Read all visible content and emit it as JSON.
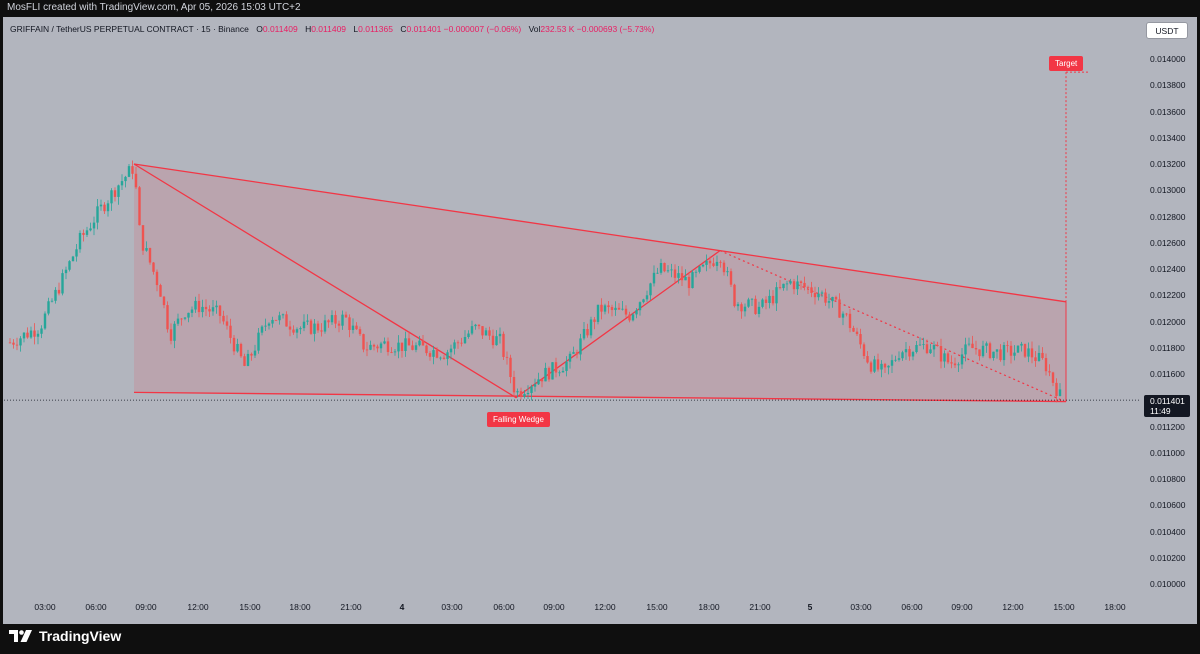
{
  "header": {
    "credit": "MosFLI created with TradingView.com, Apr 05, 2026 15:03 UTC+2"
  },
  "legend": {
    "symbol": "GRIFFAIN / TetherUS PERPETUAL CONTRACT · 15 · Binance",
    "o_key": "O",
    "o_val": "0.011409",
    "h_key": "H",
    "h_val": "0.011409",
    "l_key": "L",
    "l_val": "0.011365",
    "c_key": "C",
    "c_val": "0.011401 −0.000007 (−0.06%)",
    "vol_key": "Vol",
    "vol_val": "232.53 K −0.000693 (−5.73%)"
  },
  "currency_button": "USDT",
  "colors": {
    "up": "#26a69a",
    "down": "#ef5350",
    "pattern_line": "#f23645",
    "pattern_fill": "rgba(242,54,69,0.12)",
    "chart_bg": "#b2b5be"
  },
  "last_price": {
    "value": "0.011401",
    "countdown": "11:49"
  },
  "annotations": {
    "pattern_label": "Falling Wedge",
    "target_label": "Target"
  },
  "footer": {
    "brand": "TradingView",
    "logo_icon": "tradingview-logo-icon"
  },
  "chart_data": {
    "type": "line",
    "title": "GRIFFAIN / TetherUS PERPETUAL CONTRACT · 15 · Binance",
    "series": [
      {
        "name": "GRIFFAIN / TetherUS PERPETUAL CONTRACT",
        "x": [
          "03:00",
          "06:00",
          "08:00",
          "09:00",
          "12:00",
          "15:00",
          "18:00",
          "21:00",
          "4",
          "03:00",
          "06:30",
          "09:00",
          "12:00",
          "15:00",
          "18:00",
          "19:00",
          "21:00",
          "5",
          "03:00",
          "06:00",
          "09:00",
          "12:00",
          "15:00"
        ],
        "values": [
          0.01182,
          0.01196,
          0.01318,
          0.01265,
          0.0121,
          0.01175,
          0.01208,
          0.01187,
          0.0119,
          0.01178,
          0.01142,
          0.01166,
          0.01208,
          0.01232,
          0.0125,
          0.01252,
          0.01205,
          0.01222,
          0.01168,
          0.01182,
          0.01175,
          0.0118,
          0.011401
        ]
      }
    ],
    "y_ticks": [
      "0.014000",
      "0.013800",
      "0.013600",
      "0.013400",
      "0.013200",
      "0.013000",
      "0.012800",
      "0.012600",
      "0.012400",
      "0.012200",
      "0.012000",
      "0.011800",
      "0.011600",
      "0.011200",
      "0.011000",
      "0.010800",
      "0.010600",
      "0.010400",
      "0.010200",
      "0.010000"
    ],
    "x_ticks": [
      "03:00",
      "06:00",
      "09:00",
      "12:00",
      "15:00",
      "18:00",
      "21:00",
      "4",
      "03:00",
      "06:00",
      "09:00",
      "12:00",
      "15:00",
      "18:00",
      "21:00",
      "5",
      "03:00",
      "06:00",
      "09:00",
      "12:00",
      "15:00",
      "18:00"
    ],
    "ylim": [
      0.00995,
      0.01418
    ],
    "pattern": {
      "name": "Falling Wedge",
      "upper_line": [
        [
          0.0132,
          "08:00"
        ],
        [
          0.01215,
          "15:00"
        ]
      ],
      "lower_line": [
        [
          0.01146,
          "08:00"
        ],
        [
          0.01139,
          "15:00"
        ]
      ],
      "target": 0.0139
    },
    "grid": false,
    "legend_position": "top-left"
  }
}
